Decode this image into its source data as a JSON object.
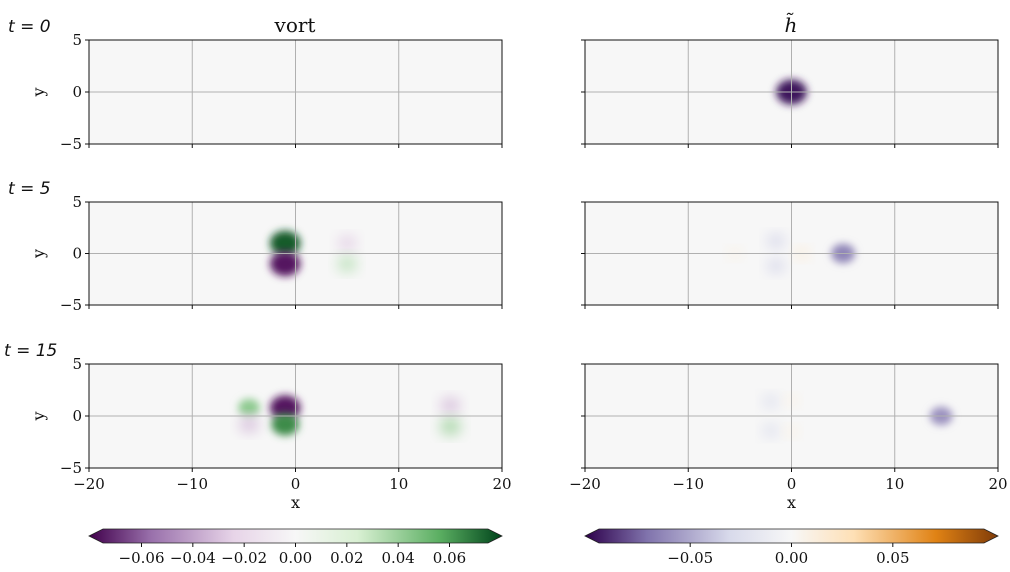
{
  "chart_data": [
    {
      "type": "heatmap",
      "title": "vort",
      "xlabel": "x",
      "ylabel": "y",
      "xlim": [
        -20,
        20
      ],
      "ylim": [
        -5,
        5
      ],
      "x_ticks": [
        "−20",
        "−10",
        "0",
        "10",
        "20"
      ],
      "y_ticks": [
        "5",
        "0",
        "−5"
      ],
      "grid": true,
      "colormap": "PRGn",
      "colorbar": {
        "range": [
          -0.075,
          0.075
        ],
        "ticks": [
          -0.06,
          -0.04,
          -0.02,
          0.0,
          0.02,
          0.04,
          0.06
        ],
        "tick_labels": [
          "−0.06",
          "−0.04",
          "−0.02",
          "0.00",
          "0.02",
          "0.04",
          "0.06"
        ],
        "extend": "both"
      },
      "panels": [
        {
          "time_label": "t = 0",
          "t": 0,
          "features": []
        },
        {
          "time_label": "t = 5",
          "t": 5,
          "features": [
            {
              "x": -1,
              "y": 1,
              "value": 0.07
            },
            {
              "x": -1,
              "y": -1,
              "value": -0.07
            },
            {
              "x": 5,
              "y": 1,
              "value": -0.025
            },
            {
              "x": 5,
              "y": -1,
              "value": 0.03
            }
          ]
        },
        {
          "time_label": "t = 15",
          "t": 15,
          "features": [
            {
              "x": -1,
              "y": 0.8,
              "value": -0.07
            },
            {
              "x": -1,
              "y": -0.8,
              "value": 0.06
            },
            {
              "x": -4.5,
              "y": 0.8,
              "value": 0.04
            },
            {
              "x": -4.5,
              "y": -0.8,
              "value": -0.03
            },
            {
              "x": 15,
              "y": 1,
              "value": -0.03
            },
            {
              "x": 15,
              "y": -1,
              "value": 0.035
            }
          ]
        }
      ]
    },
    {
      "type": "heatmap",
      "title": "h̃",
      "xlabel": "x",
      "ylabel": "",
      "xlim": [
        -20,
        20
      ],
      "ylim": [
        -5,
        5
      ],
      "x_ticks": [
        "−20",
        "−10",
        "0",
        "10",
        "20"
      ],
      "grid": true,
      "colormap": "PuOr_r",
      "colorbar": {
        "range": [
          -0.095,
          0.095
        ],
        "ticks": [
          -0.05,
          0.0,
          0.05
        ],
        "tick_labels": [
          "−0.05",
          "0.00",
          "0.05"
        ],
        "extend": "both"
      },
      "panels": [
        {
          "t": 0,
          "features": [
            {
              "x": 0,
              "y": 0,
              "value": -0.09
            }
          ]
        },
        {
          "t": 5,
          "features": [
            {
              "x": 5,
              "y": 0,
              "value": -0.06
            },
            {
              "x": -1.5,
              "y": 1.2,
              "value": -0.03
            },
            {
              "x": -1.5,
              "y": -1.2,
              "value": -0.03
            },
            {
              "x": 1,
              "y": 0,
              "value": 0.015
            },
            {
              "x": -5.5,
              "y": 0,
              "value": 0.01
            }
          ]
        },
        {
          "t": 15,
          "features": [
            {
              "x": 14.5,
              "y": 0,
              "value": -0.055
            },
            {
              "x": -2,
              "y": 1.4,
              "value": -0.025
            },
            {
              "x": -2,
              "y": -1.4,
              "value": -0.025
            },
            {
              "x": 0,
              "y": 1.5,
              "value": 0.01
            },
            {
              "x": 0,
              "y": -1.5,
              "value": 0.01
            }
          ]
        }
      ]
    }
  ]
}
